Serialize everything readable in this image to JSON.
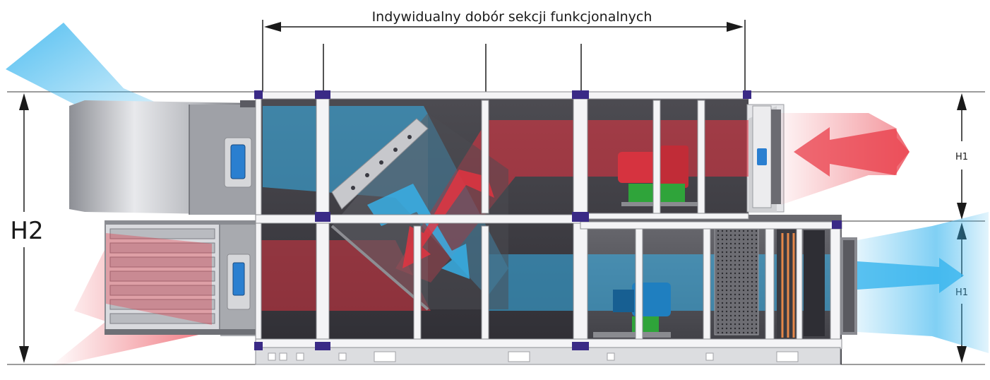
{
  "diagram": {
    "title": "Indywidualny dobór sekcji funkcjonalnych",
    "dimensions": {
      "total_height_label": "H2",
      "upper_deck_height_label": "H1",
      "lower_deck_height_label": "H1"
    },
    "airflows": [
      {
        "name": "outdoor-air-intake",
        "color": "#36b4ee"
      },
      {
        "name": "extract-air-return",
        "color": "#e8323f"
      },
      {
        "name": "supply-air",
        "color": "#36b4ee"
      },
      {
        "name": "exhaust-air",
        "color": "#e8323f"
      }
    ],
    "colors": {
      "casing": "#5a5a60",
      "casing_dark": "#3b3b40",
      "frame": "#ffffff",
      "corner": "#3a2a86",
      "motor_body": "#d6333f",
      "motor_base": "#2fa43a",
      "motor_cold": "#1f7fc0",
      "filter": "#c9c9cf"
    }
  }
}
